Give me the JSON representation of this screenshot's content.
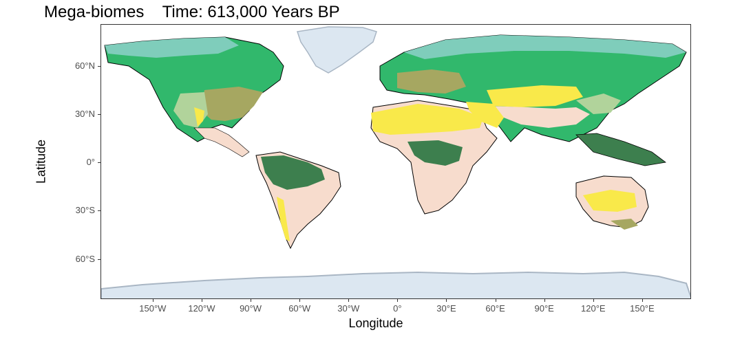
{
  "header": {
    "title": "Mega-biomes",
    "time_label": "Time: 613,000 Years BP"
  },
  "axes": {
    "xlabel": "Longitude",
    "ylabel": "Latitude",
    "x_ticks": [
      "150°W",
      "120°W",
      "90°W",
      "60°W",
      "30°W",
      "0°",
      "30°E",
      "60°E",
      "90°E",
      "120°E",
      "150°E"
    ],
    "x_tick_lon": [
      -150,
      -120,
      -90,
      -60,
      -30,
      0,
      30,
      60,
      90,
      120,
      150
    ],
    "y_ticks": [
      "60°N",
      "30°N",
      "0°",
      "30°S",
      "60°S"
    ],
    "y_tick_lat": [
      60,
      30,
      0,
      -30,
      -60
    ],
    "lon_range": [
      -180,
      180
    ],
    "lat_range": [
      -90,
      90
    ]
  },
  "colors": {
    "tundra": "#7fcdbb",
    "boreal": "#31b86c",
    "temperate_forest": "#a6a761",
    "grassland": "#b1d39b",
    "tropical_forest": "#3d7f4e",
    "savanna": "#f7dccd",
    "desert": "#f9e94a",
    "ice": "#dce7f1",
    "ice_outline": "#a9b6c4",
    "coast": "#000000"
  }
}
